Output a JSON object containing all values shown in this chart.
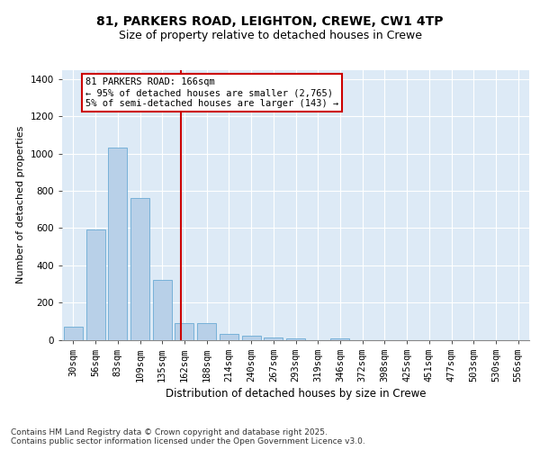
{
  "title1": "81, PARKERS ROAD, LEIGHTON, CREWE, CW1 4TP",
  "title2": "Size of property relative to detached houses in Crewe",
  "xlabel": "Distribution of detached houses by size in Crewe",
  "ylabel": "Number of detached properties",
  "categories": [
    "30sqm",
    "56sqm",
    "83sqm",
    "109sqm",
    "135sqm",
    "162sqm",
    "188sqm",
    "214sqm",
    "240sqm",
    "267sqm",
    "293sqm",
    "319sqm",
    "346sqm",
    "372sqm",
    "398sqm",
    "425sqm",
    "451sqm",
    "477sqm",
    "503sqm",
    "530sqm",
    "556sqm"
  ],
  "values": [
    70,
    590,
    1030,
    760,
    320,
    90,
    90,
    30,
    20,
    10,
    5,
    0,
    5,
    0,
    0,
    0,
    0,
    0,
    0,
    0,
    0
  ],
  "bar_color": "#b8d0e8",
  "bar_edge_color": "#6aaad4",
  "vline_color": "#cc0000",
  "annotation_text": "81 PARKERS ROAD: 166sqm\n← 95% of detached houses are smaller (2,765)\n5% of semi-detached houses are larger (143) →",
  "annotation_box_color": "#cc0000",
  "ylim": [
    0,
    1450
  ],
  "yticks": [
    0,
    200,
    400,
    600,
    800,
    1000,
    1200,
    1400
  ],
  "plot_bg_color": "#ddeaf6",
  "footer": "Contains HM Land Registry data © Crown copyright and database right 2025.\nContains public sector information licensed under the Open Government Licence v3.0.",
  "title1_fontsize": 10,
  "title2_fontsize": 9,
  "xlabel_fontsize": 8.5,
  "ylabel_fontsize": 8,
  "tick_fontsize": 7.5,
  "footer_fontsize": 6.5,
  "annot_fontsize": 7.5
}
